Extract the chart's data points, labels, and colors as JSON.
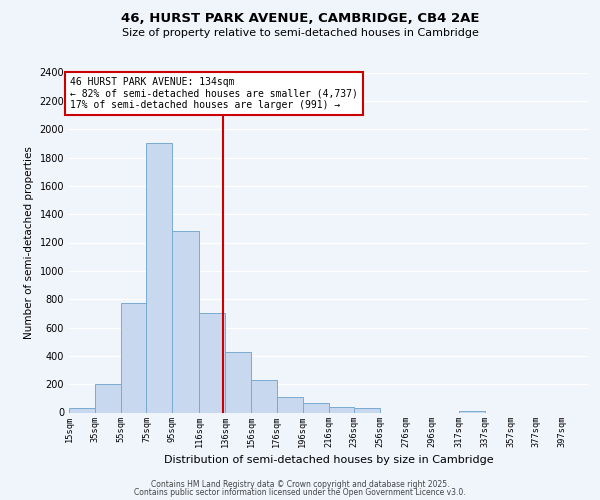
{
  "title": "46, HURST PARK AVENUE, CAMBRIDGE, CB4 2AE",
  "subtitle": "Size of property relative to semi-detached houses in Cambridge",
  "xlabel": "Distribution of semi-detached houses by size in Cambridge",
  "ylabel": "Number of semi-detached properties",
  "bar_edges": [
    15,
    35,
    55,
    75,
    95,
    116,
    136,
    156,
    176,
    196,
    216,
    236,
    256,
    276,
    296,
    317,
    337,
    357,
    377,
    397,
    417
  ],
  "bar_heights": [
    30,
    200,
    770,
    1900,
    1280,
    700,
    430,
    230,
    110,
    65,
    40,
    30,
    0,
    0,
    0,
    10,
    0,
    0,
    0,
    0
  ],
  "property_line_x": 134,
  "annotation_text_line1": "46 HURST PARK AVENUE: 134sqm",
  "annotation_text_line2": "← 82% of semi-detached houses are smaller (4,737)",
  "annotation_text_line3": "17% of semi-detached houses are larger (991) →",
  "bar_color": "#c8d9ef",
  "bar_edge_color": "#7aaad0",
  "line_color": "#cc0000",
  "annotation_box_edge_color": "#cc0000",
  "ylim": [
    0,
    2400
  ],
  "yticks": [
    0,
    200,
    400,
    600,
    800,
    1000,
    1200,
    1400,
    1600,
    1800,
    2000,
    2200,
    2400
  ],
  "footer_line1": "Contains HM Land Registry data © Crown copyright and database right 2025.",
  "footer_line2": "Contains public sector information licensed under the Open Government Licence v3.0.",
  "bg_color": "#f0f4fb"
}
